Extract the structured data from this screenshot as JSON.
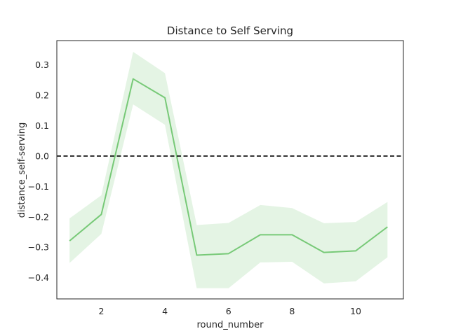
{
  "chart_data": {
    "type": "line",
    "title": "Distance to Self Serving",
    "xlabel": "round_number",
    "ylabel": "distance_self-serving",
    "xlim": [
      0.6,
      11.5
    ],
    "ylim": [
      -0.47,
      0.38
    ],
    "xticks": [
      2,
      4,
      6,
      8,
      10
    ],
    "xtick_labels": [
      "2",
      "4",
      "6",
      "8",
      "10"
    ],
    "yticks": [
      0.3,
      0.2,
      0.1,
      0.0,
      -0.1,
      -0.2,
      -0.3,
      -0.4
    ],
    "ytick_labels": [
      "0.3",
      "0.2",
      "0.1",
      "0.0",
      "−0.1",
      "−0.2",
      "−0.3",
      "−0.4"
    ],
    "grid": false,
    "reference_line": {
      "y": 0.0,
      "style": "dashed",
      "color": "#000000"
    },
    "series": [
      {
        "color": "#77c977",
        "x": [
          1,
          2,
          3,
          4,
          5,
          6,
          7,
          8,
          9,
          10,
          11
        ],
        "y": [
          -0.279,
          -0.192,
          0.254,
          0.192,
          -0.326,
          -0.321,
          -0.259,
          -0.259,
          -0.317,
          -0.312,
          -0.233
        ],
        "ci_lower": [
          -0.352,
          -0.256,
          0.17,
          0.103,
          -0.435,
          -0.435,
          -0.35,
          -0.348,
          -0.419,
          -0.412,
          -0.333
        ],
        "ci_upper": [
          -0.205,
          -0.129,
          0.343,
          0.273,
          -0.227,
          -0.22,
          -0.161,
          -0.171,
          -0.221,
          -0.217,
          -0.151
        ]
      }
    ]
  }
}
